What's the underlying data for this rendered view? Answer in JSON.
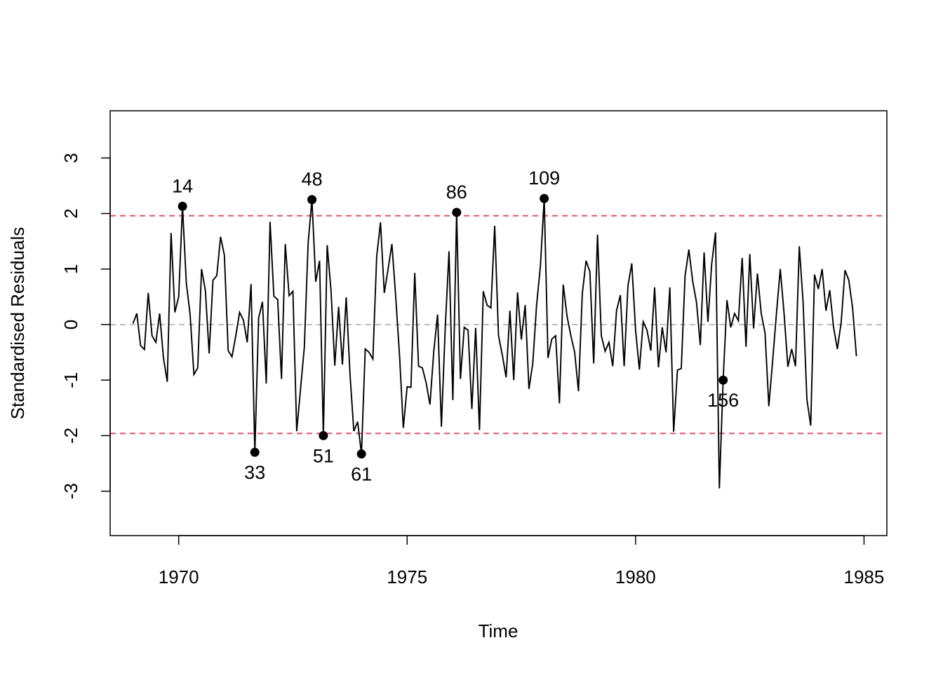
{
  "chart_data": {
    "type": "line",
    "title": "",
    "xlabel": "Time",
    "ylabel": "Standardised Residuals",
    "xlim": [
      1968.5,
      1985.5
    ],
    "ylim": [
      -3.8,
      3.85
    ],
    "x_ticks": [
      "1970",
      "1975",
      "1980",
      "1985"
    ],
    "y_ticks": [
      "-3",
      "-2",
      "-1",
      "0",
      "1",
      "2",
      "3"
    ],
    "x_start": 1969,
    "frequency": 12,
    "series": [
      {
        "values": [
          0.02,
          0.2,
          -0.38,
          -0.45,
          0.57,
          -0.2,
          -0.32,
          0.2,
          -0.6,
          -1.03,
          1.65,
          0.22,
          0.5,
          2.13,
          0.75,
          0.18,
          -0.9,
          -0.78,
          1.0,
          0.62,
          -0.52,
          0.8,
          0.88,
          1.58,
          1.25,
          -0.47,
          -0.58,
          -0.2,
          0.22,
          0.08,
          -0.32,
          0.73,
          -2.3,
          0.12,
          0.41,
          -1.06,
          1.85,
          0.51,
          0.45,
          -0.98,
          1.45,
          0.52,
          0.6,
          -1.92,
          -1.16,
          -0.41,
          1.47,
          2.25,
          0.77,
          1.15,
          -2.0,
          1.43,
          0.62,
          -0.74,
          0.32,
          -0.72,
          0.49,
          -0.9,
          -1.92,
          -1.75,
          -2.33,
          -0.44,
          -0.5,
          -0.62,
          1.22,
          1.84,
          0.57,
          1.0,
          1.45,
          0.5,
          -0.55,
          -1.86,
          -1.12,
          -1.13,
          0.93,
          -0.75,
          -0.78,
          -1.05,
          -1.44,
          -0.48,
          0.18,
          -1.84,
          -0.07,
          1.32,
          -1.36,
          2.02,
          -0.98,
          -0.05,
          -0.1,
          -1.52,
          -0.06,
          -1.9,
          0.6,
          0.35,
          0.3,
          1.78,
          -0.2,
          -0.55,
          -0.95,
          0.25,
          -1.0,
          0.58,
          -0.27,
          0.35,
          -1.16,
          -0.7,
          0.35,
          1.05,
          2.27,
          -0.6,
          -0.26,
          -0.2,
          -1.42,
          0.72,
          0.15,
          -0.2,
          -0.5,
          -1.2,
          0.55,
          1.15,
          0.95,
          -0.7,
          1.62,
          -0.2,
          -0.48,
          -0.32,
          -0.75,
          0.25,
          0.53,
          -0.75,
          0.7,
          1.1,
          -0.1,
          -0.81,
          0.05,
          -0.1,
          -0.47,
          0.67,
          -0.77,
          -0.05,
          -0.5,
          0.67,
          -1.93,
          -0.82,
          -0.79,
          0.88,
          1.35,
          0.78,
          0.4,
          -0.37,
          1.3,
          0.05,
          1.1,
          1.66,
          -2.95,
          -1.0,
          0.44,
          -0.05,
          0.2,
          0.07,
          1.2,
          -0.4,
          1.27,
          -0.07,
          0.92,
          0.2,
          -0.15,
          -1.47,
          -0.65,
          0.2,
          1.0,
          0.2,
          -0.76,
          -0.44,
          -0.75,
          1.41,
          0.4,
          -1.35,
          -1.82,
          0.9,
          0.64,
          1.0,
          0.25,
          0.62,
          -0.05,
          -0.44,
          0.04,
          0.98,
          0.8,
          0.3,
          -0.57
        ]
      }
    ],
    "reference_lines": [
      {
        "y": 0,
        "color": "#bebebe",
        "style": "dashed"
      },
      {
        "y": 1.96,
        "color": "#df536b",
        "style": "dashed"
      },
      {
        "y": -1.96,
        "color": "#df536b",
        "style": "dashed"
      }
    ],
    "highlighted_points": [
      {
        "index": 14,
        "label": "14",
        "label_position": "above"
      },
      {
        "index": 33,
        "label": "33",
        "label_position": "below"
      },
      {
        "index": 48,
        "label": "48",
        "label_position": "above"
      },
      {
        "index": 51,
        "label": "51",
        "label_position": "below"
      },
      {
        "index": 61,
        "label": "61",
        "label_position": "below"
      },
      {
        "index": 86,
        "label": "86",
        "label_position": "above"
      },
      {
        "index": 109,
        "label": "109",
        "label_position": "above"
      },
      {
        "index": 156,
        "label": "156",
        "label_position": "below"
      }
    ],
    "grid": false,
    "legend": "none",
    "line_color": "#000000"
  }
}
